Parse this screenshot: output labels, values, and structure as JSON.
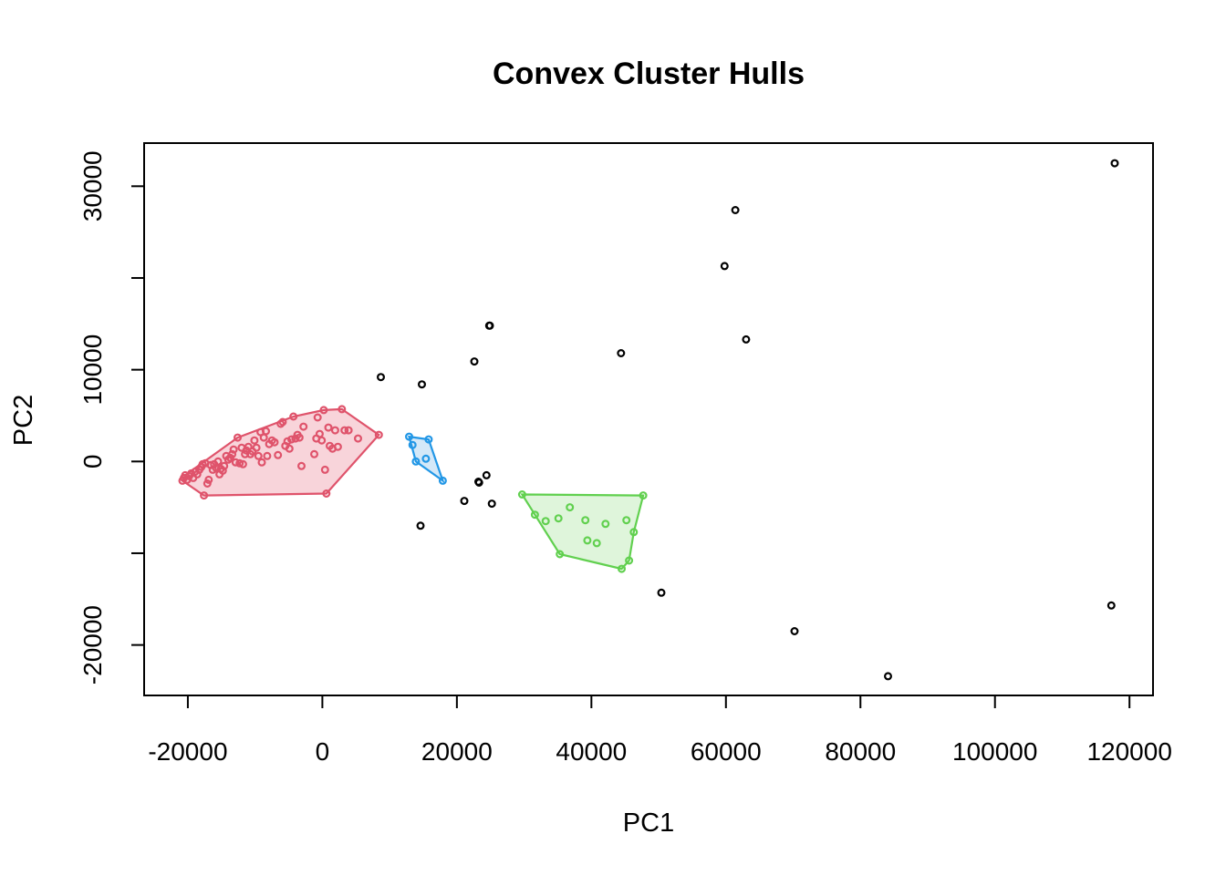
{
  "chart_data": {
    "type": "scatter",
    "title": "Convex Cluster Hulls",
    "xlabel": "PC1",
    "ylabel": "PC2",
    "xlim": [
      -26500,
      123500
    ],
    "ylim": [
      -25500,
      34700
    ],
    "x_ticks": [
      -20000,
      0,
      20000,
      40000,
      60000,
      80000,
      100000,
      120000
    ],
    "x_tick_labels": [
      "-20000",
      "0",
      "20000",
      "40000",
      "60000",
      "80000",
      "100000",
      "120000"
    ],
    "y_ticks": [
      -20000,
      -10000,
      0,
      10000,
      20000,
      30000
    ],
    "y_tick_labels": [
      "-20000",
      "",
      "0",
      "10000",
      "",
      "30000"
    ],
    "grid": false,
    "legend": "none",
    "clusters": [
      {
        "color": "#DF536B",
        "fill": "#F8D4DA",
        "hull": [
          [
            -20800,
            -2100
          ],
          [
            -17600,
            -3700
          ],
          [
            600,
            -3500
          ],
          [
            8400,
            2900
          ],
          [
            2900,
            5700
          ],
          [
            200,
            5600
          ],
          [
            -4300,
            4900
          ],
          [
            -12600,
            2600
          ],
          [
            -20400,
            -1500
          ]
        ],
        "points": [
          [
            -20800,
            -2100
          ],
          [
            -20600,
            -1800
          ],
          [
            -20400,
            -1500
          ],
          [
            -20100,
            -2000
          ],
          [
            -19800,
            -1600
          ],
          [
            -19500,
            -1300
          ],
          [
            -19200,
            -1800
          ],
          [
            -18900,
            -1100
          ],
          [
            -18600,
            -1400
          ],
          [
            -18300,
            -900
          ],
          [
            -18000,
            -600
          ],
          [
            -17800,
            -300
          ],
          [
            -17600,
            -3700
          ],
          [
            -17400,
            -200
          ],
          [
            -17100,
            -2400
          ],
          [
            -16900,
            -2000
          ],
          [
            -16600,
            -400
          ],
          [
            -16300,
            -900
          ],
          [
            -16100,
            -300
          ],
          [
            -15800,
            -700
          ],
          [
            -15500,
            0
          ],
          [
            -15300,
            -1400
          ],
          [
            -15100,
            -800
          ],
          [
            -14800,
            -1000
          ],
          [
            -14600,
            -500
          ],
          [
            -14300,
            600
          ],
          [
            -14000,
            200
          ],
          [
            -13700,
            400
          ],
          [
            -13400,
            800
          ],
          [
            -13200,
            1300
          ],
          [
            -12900,
            -100
          ],
          [
            -12600,
            2600
          ],
          [
            -12300,
            -200
          ],
          [
            -12000,
            1500
          ],
          [
            -11800,
            -300
          ],
          [
            -11500,
            800
          ],
          [
            -11300,
            1200
          ],
          [
            -11000,
            1600
          ],
          [
            -10700,
            800
          ],
          [
            -10400,
            1100
          ],
          [
            -10100,
            2300
          ],
          [
            -9800,
            1500
          ],
          [
            -9500,
            600
          ],
          [
            -9200,
            3200
          ],
          [
            -9000,
            -100
          ],
          [
            -8700,
            2600
          ],
          [
            -8400,
            3300
          ],
          [
            -8200,
            600
          ],
          [
            -7900,
            1900
          ],
          [
            -7500,
            2300
          ],
          [
            -7100,
            2100
          ],
          [
            -6600,
            700
          ],
          [
            -6200,
            4100
          ],
          [
            -5900,
            4300
          ],
          [
            -5500,
            1700
          ],
          [
            -5200,
            2200
          ],
          [
            -4900,
            1400
          ],
          [
            -4600,
            2400
          ],
          [
            -4300,
            4900
          ],
          [
            -4000,
            2500
          ],
          [
            -3700,
            2900
          ],
          [
            -3400,
            2600
          ],
          [
            -3100,
            -500
          ],
          [
            -2800,
            3800
          ],
          [
            -1200,
            800
          ],
          [
            -900,
            2500
          ],
          [
            -700,
            4800
          ],
          [
            -400,
            3000
          ],
          [
            -100,
            2300
          ],
          [
            200,
            5600
          ],
          [
            400,
            -900
          ],
          [
            600,
            -3500
          ],
          [
            900,
            3700
          ],
          [
            1100,
            1700
          ],
          [
            1500,
            1400
          ],
          [
            1900,
            3400
          ],
          [
            2300,
            1600
          ],
          [
            2900,
            5700
          ],
          [
            3300,
            3400
          ],
          [
            3900,
            3400
          ],
          [
            5300,
            2500
          ],
          [
            8400,
            2900
          ]
        ]
      },
      {
        "color": "#2297E6",
        "fill": "#D4E8F8",
        "hull": [
          [
            12900,
            2700
          ],
          [
            15800,
            2400
          ],
          [
            17900,
            -2100
          ],
          [
            13900,
            0
          ]
        ],
        "points": [
          [
            12900,
            2700
          ],
          [
            13400,
            1800
          ],
          [
            13900,
            0
          ],
          [
            15400,
            300
          ],
          [
            15800,
            2400
          ],
          [
            17900,
            -2100
          ]
        ]
      },
      {
        "color": "#61D04F",
        "fill": "#DFF5DB",
        "hull": [
          [
            29700,
            -3600
          ],
          [
            47700,
            -3700
          ],
          [
            46300,
            -7700
          ],
          [
            45600,
            -10800
          ],
          [
            44500,
            -11700
          ],
          [
            35300,
            -10100
          ],
          [
            31600,
            -5800
          ]
        ],
        "points": [
          [
            29700,
            -3600
          ],
          [
            31600,
            -5800
          ],
          [
            33200,
            -6500
          ],
          [
            35100,
            -6200
          ],
          [
            35300,
            -10100
          ],
          [
            36800,
            -5000
          ],
          [
            39100,
            -6400
          ],
          [
            39400,
            -8600
          ],
          [
            40800,
            -8900
          ],
          [
            42100,
            -6800
          ],
          [
            44500,
            -11700
          ],
          [
            45200,
            -6400
          ],
          [
            45600,
            -10800
          ],
          [
            46300,
            -7700
          ],
          [
            47700,
            -3700
          ]
        ]
      }
    ],
    "outliers": [
      [
        117800,
        32500
      ],
      [
        61400,
        27400
      ],
      [
        59800,
        21300
      ],
      [
        63000,
        13300
      ],
      [
        44400,
        11800
      ],
      [
        24900,
        14800
      ],
      [
        24800,
        14800
      ],
      [
        22600,
        10900
      ],
      [
        8700,
        9200
      ],
      [
        14800,
        8400
      ],
      [
        24400,
        -1500
      ],
      [
        23300,
        -2300
      ],
      [
        23200,
        -2200
      ],
      [
        21100,
        -4300
      ],
      [
        25200,
        -4600
      ],
      [
        14600,
        -7000
      ],
      [
        50400,
        -14300
      ],
      [
        70200,
        -18500
      ],
      [
        84100,
        -23400
      ],
      [
        117300,
        -15700
      ]
    ],
    "outlier_color": "#000000"
  }
}
